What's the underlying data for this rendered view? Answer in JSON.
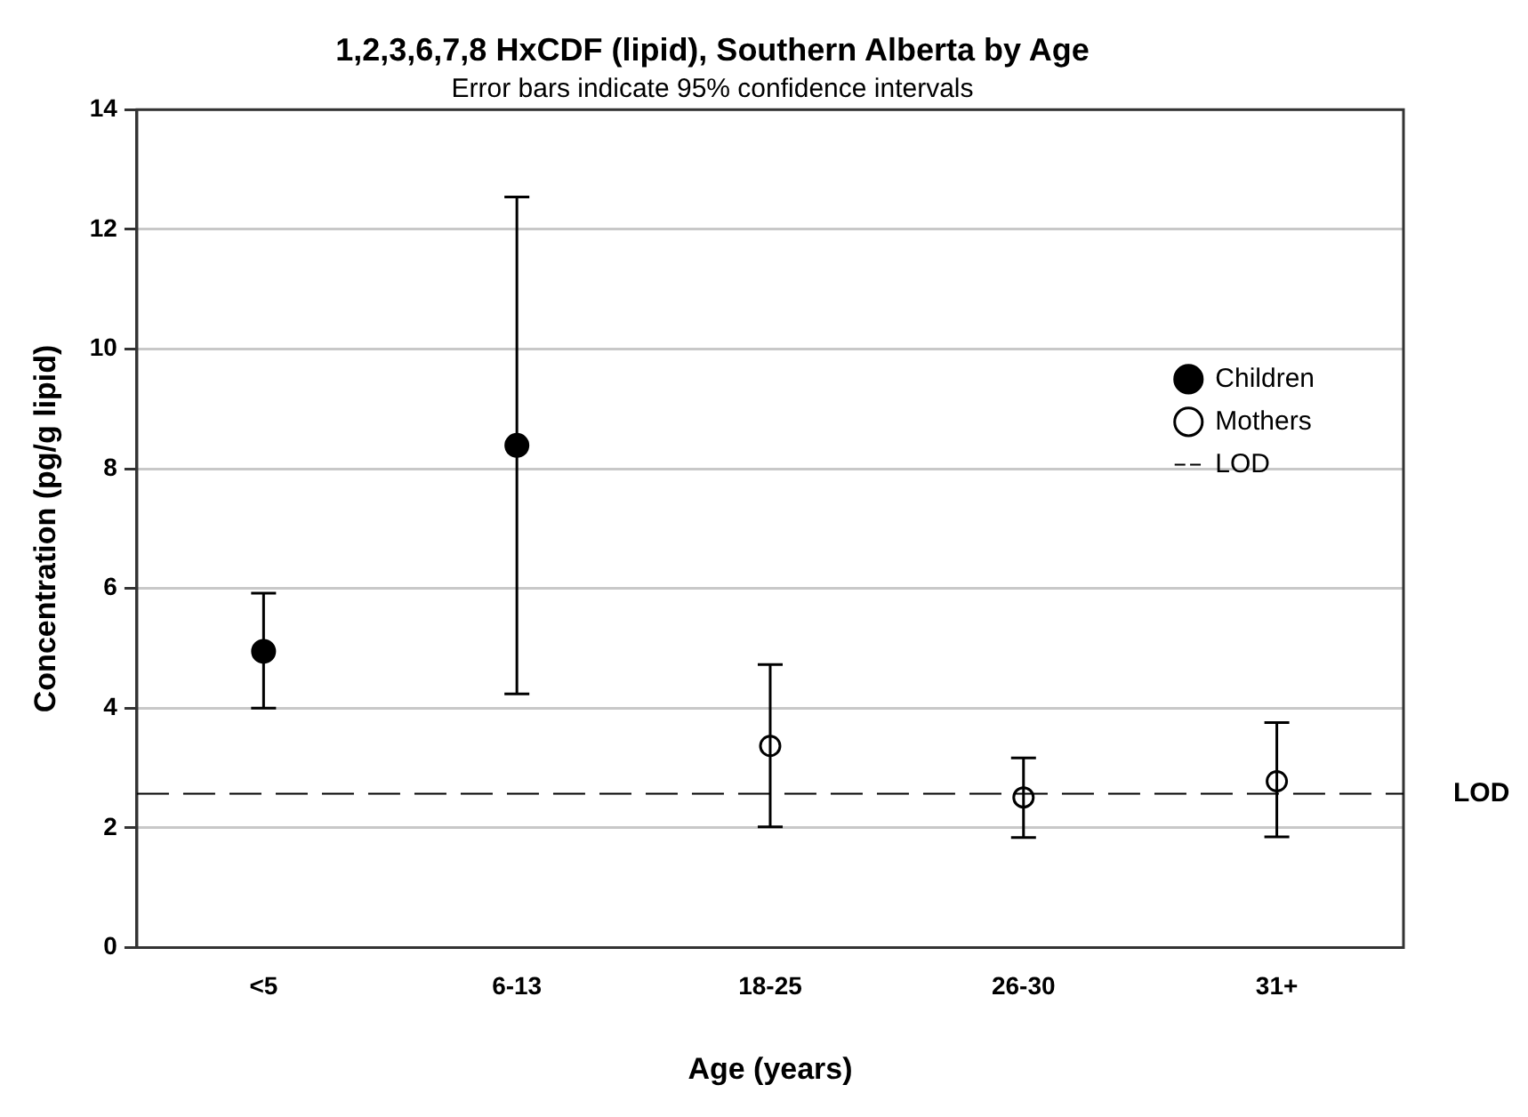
{
  "chart_data": {
    "type": "scatter",
    "title": "1,2,3,6,7,8 HxCDF (lipid), Southern Alberta by Age",
    "subtitle": "Error bars indicate 95% confidence intervals",
    "xlabel": "Age (years)",
    "ylabel": "Concentration (pg/g lipid)",
    "categories": [
      "<5",
      "6-13",
      "18-25",
      "26-30",
      "31+"
    ],
    "series": [
      {
        "name": "Children",
        "color": "#000000",
        "marker": "circle",
        "values": [
          4.95,
          8.39,
          null,
          null,
          null
        ],
        "errors": [
          [
            4.0,
            5.92
          ],
          [
            4.24,
            12.54
          ],
          null,
          null,
          null
        ]
      },
      {
        "name": "Mothers",
        "color": "#000000",
        "marker": "circle",
        "values": [
          null,
          null,
          3.37,
          2.51,
          2.78
        ],
        "errors": [
          null,
          null,
          [
            2.02,
            4.73
          ],
          [
            1.84,
            3.17
          ],
          [
            1.85,
            3.76
          ]
        ]
      }
    ],
    "ref_lines": [
      {
        "axis": "y",
        "value": 2.57,
        "label": "LOD",
        "color": "#000000",
        "line_style": "dashed"
      }
    ],
    "ylim": [
      0,
      14
    ],
    "yticks": [
      0,
      2,
      4,
      6,
      8,
      10,
      12,
      14
    ],
    "grid": "y",
    "legend": "right"
  }
}
